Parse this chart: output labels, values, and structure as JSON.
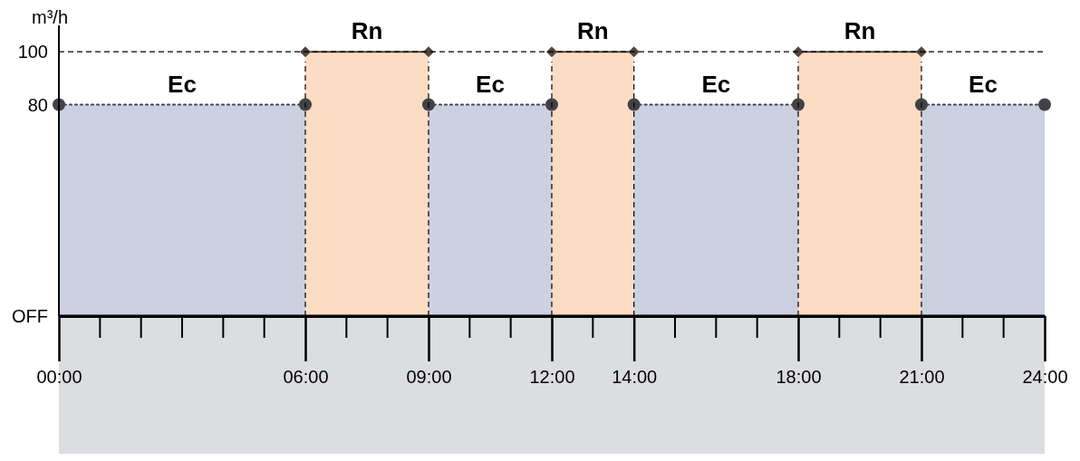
{
  "chart_data": {
    "type": "area",
    "ylabel": "m³/h",
    "xlim": [
      0,
      24
    ],
    "ylim": [
      0,
      110
    ],
    "xticks": [
      {
        "value": 0,
        "label": "00:00"
      },
      {
        "value": 6,
        "label": "06:00"
      },
      {
        "value": 9,
        "label": "09:00"
      },
      {
        "value": 12,
        "label": "12:00"
      },
      {
        "value": 14,
        "label": "14:00"
      },
      {
        "value": 18,
        "label": "18:00"
      },
      {
        "value": 21,
        "label": "21:00"
      },
      {
        "value": 24,
        "label": "24:00"
      }
    ],
    "yticks": [
      {
        "value": 0,
        "label": "OFF"
      },
      80,
      100
    ],
    "series": [
      {
        "name": "Ec",
        "color": "#ccd0e0",
        "marker": "circle",
        "line_style": "dotted",
        "x": [
          0,
          6,
          7.5,
          9,
          12,
          13,
          14,
          18,
          19.5,
          21,
          24
        ],
        "values": [
          80,
          80,
          null,
          80,
          80,
          null,
          80,
          80,
          null,
          80,
          80
        ]
      },
      {
        "name": "Rn",
        "color": "#fddcc4",
        "marker": "diamond",
        "line_style": "solid",
        "x": [
          6,
          9,
          10.5,
          12,
          14,
          16,
          18,
          21
        ],
        "values": [
          100,
          100,
          null,
          100,
          100,
          null,
          100,
          100
        ]
      }
    ],
    "ref_lines": [
      {
        "axis": "y",
        "value": 100,
        "line_style": "dashed"
      },
      {
        "axis": "x",
        "value": 6,
        "line_style": "dashed"
      },
      {
        "axis": "x",
        "value": 9,
        "line_style": "dashed"
      },
      {
        "axis": "x",
        "value": 12,
        "line_style": "dashed"
      },
      {
        "axis": "x",
        "value": 14,
        "line_style": "dashed"
      },
      {
        "axis": "x",
        "value": 18,
        "line_style": "dashed"
      },
      {
        "axis": "x",
        "value": 21,
        "line_style": "dashed"
      }
    ],
    "tick_labels": true,
    "grid": false,
    "legend": false
  }
}
